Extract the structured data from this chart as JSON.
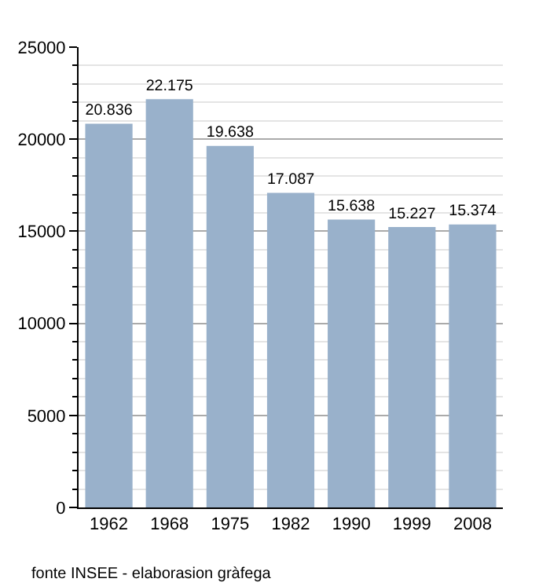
{
  "chart_data": {
    "type": "bar",
    "categories": [
      "1962",
      "1968",
      "1975",
      "1982",
      "1990",
      "1999",
      "2008"
    ],
    "values": [
      20836,
      22175,
      19638,
      17087,
      15638,
      15227,
      15374
    ],
    "value_labels": [
      "20.836",
      "22.175",
      "19.638",
      "17.087",
      "15.638",
      "15.227",
      "15.374"
    ],
    "color": "#99b1cb",
    "ylim": [
      0,
      25000
    ],
    "yticks": [
      0,
      5000,
      10000,
      15000,
      20000,
      25000
    ],
    "grid": "y",
    "annotations": [
      "fonte INSEE - elaborasion gràfega"
    ]
  }
}
